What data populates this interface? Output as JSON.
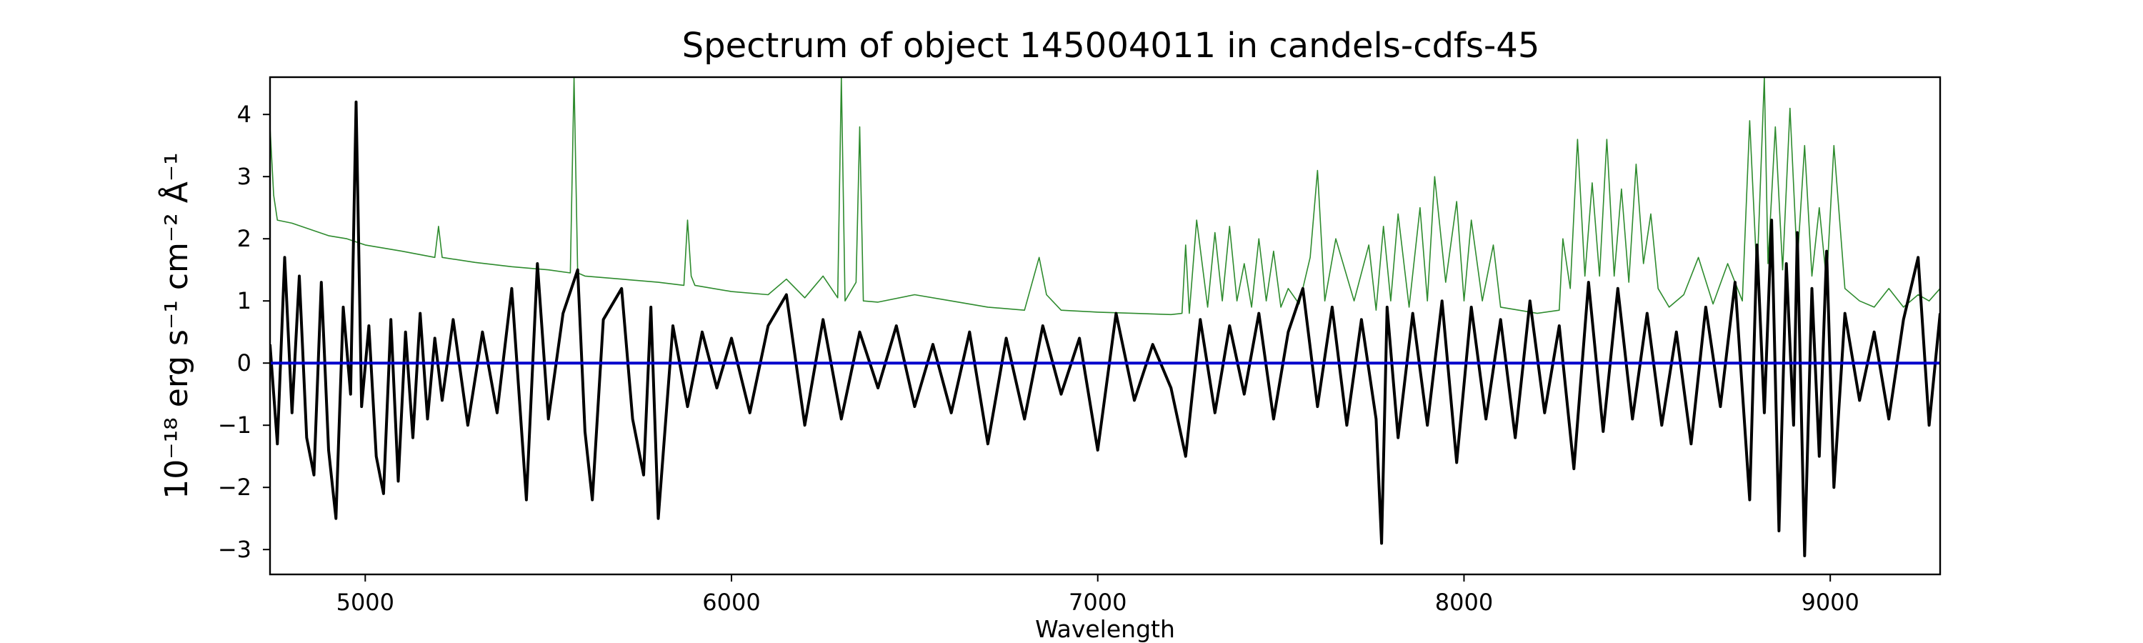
{
  "chart_data": {
    "type": "line",
    "title": "Spectrum of object 145004011 in candels-cdfs-45",
    "xlabel": "Wavelength",
    "ylabel": "10⁻¹⁸ erg s⁻¹ cm⁻² Å⁻¹",
    "xlim": [
      4740,
      9300
    ],
    "ylim": [
      -3.4,
      4.6
    ],
    "xticks": [
      5000,
      6000,
      7000,
      8000,
      9000
    ],
    "xtick_labels": [
      "5000",
      "6000",
      "7000",
      "8000",
      "9000"
    ],
    "yticks": [
      4,
      3,
      2,
      1,
      0,
      -1,
      -2,
      -3
    ],
    "ytick_labels": [
      "4",
      "3",
      "2",
      "1",
      "0",
      "−1",
      "−2",
      "−3"
    ],
    "grid": false,
    "colors": {
      "flux": "#000000",
      "error": "#2e8b2e",
      "zero": "#0000cc"
    },
    "series": [
      {
        "role": "flux",
        "x": [
          4740,
          4760,
          4780,
          4800,
          4820,
          4840,
          4860,
          4880,
          4900,
          4920,
          4940,
          4960,
          4975,
          4990,
          5010,
          5030,
          5050,
          5070,
          5090,
          5110,
          5130,
          5150,
          5170,
          5190,
          5210,
          5240,
          5280,
          5320,
          5360,
          5400,
          5440,
          5470,
          5500,
          5540,
          5580,
          5600,
          5620,
          5650,
          5700,
          5730,
          5760,
          5780,
          5800,
          5840,
          5880,
          5920,
          5960,
          6000,
          6050,
          6100,
          6150,
          6200,
          6250,
          6300,
          6350,
          6400,
          6450,
          6500,
          6550,
          6600,
          6650,
          6700,
          6750,
          6800,
          6850,
          6900,
          6950,
          7000,
          7050,
          7100,
          7150,
          7200,
          7240,
          7280,
          7320,
          7360,
          7400,
          7440,
          7480,
          7520,
          7560,
          7600,
          7640,
          7680,
          7720,
          7760,
          7775,
          7790,
          7820,
          7860,
          7900,
          7940,
          7980,
          8020,
          8060,
          8100,
          8140,
          8180,
          8220,
          8260,
          8300,
          8340,
          8380,
          8420,
          8460,
          8500,
          8540,
          8580,
          8620,
          8660,
          8700,
          8740,
          8780,
          8800,
          8820,
          8840,
          8860,
          8880,
          8900,
          8910,
          8930,
          8950,
          8970,
          8990,
          9010,
          9040,
          9080,
          9120,
          9160,
          9200,
          9240,
          9270,
          9300
        ],
        "y": [
          0.3,
          -1.3,
          1.7,
          -0.8,
          1.4,
          -1.2,
          -1.8,
          1.3,
          -1.4,
          -2.5,
          0.9,
          -0.5,
          4.2,
          -0.7,
          0.6,
          -1.5,
          -2.1,
          0.7,
          -1.9,
          0.5,
          -1.2,
          0.8,
          -0.9,
          0.4,
          -0.6,
          0.7,
          -1.0,
          0.5,
          -0.8,
          1.2,
          -2.2,
          1.6,
          -0.9,
          0.8,
          1.5,
          -1.1,
          -2.2,
          0.7,
          1.2,
          -0.9,
          -1.8,
          0.9,
          -2.5,
          0.6,
          -0.7,
          0.5,
          -0.4,
          0.4,
          -0.8,
          0.6,
          1.1,
          -1.0,
          0.7,
          -0.9,
          0.5,
          -0.4,
          0.6,
          -0.7,
          0.3,
          -0.8,
          0.5,
          -1.3,
          0.4,
          -0.9,
          0.6,
          -0.5,
          0.4,
          -1.4,
          0.8,
          -0.6,
          0.3,
          -0.4,
          -1.5,
          0.7,
          -0.8,
          0.6,
          -0.5,
          0.8,
          -0.9,
          0.5,
          1.2,
          -0.7,
          0.9,
          -1.0,
          0.7,
          -0.9,
          -2.9,
          0.9,
          -1.2,
          0.8,
          -1.0,
          1.0,
          -1.6,
          0.9,
          -0.9,
          0.7,
          -1.2,
          1.0,
          -0.8,
          0.6,
          -1.7,
          1.3,
          -1.1,
          1.2,
          -0.9,
          0.8,
          -1.0,
          0.5,
          -1.3,
          0.9,
          -0.7,
          1.3,
          -2.2,
          1.9,
          -0.8,
          2.3,
          -2.7,
          1.6,
          -1.0,
          2.1,
          -3.1,
          1.2,
          -1.5,
          1.8,
          -2.0,
          0.8,
          -0.6,
          0.5,
          -0.9,
          0.7,
          1.7,
          -1.0,
          0.8
        ]
      },
      {
        "role": "error",
        "x": [
          4740,
          4750,
          4760,
          4800,
          4850,
          4900,
          4950,
          5000,
          5100,
          5190,
          5200,
          5210,
          5300,
          5400,
          5500,
          5560,
          5570,
          5580,
          5600,
          5700,
          5800,
          5870,
          5880,
          5890,
          5900,
          6000,
          6100,
          6150,
          6200,
          6250,
          6290,
          6300,
          6310,
          6340,
          6350,
          6360,
          6400,
          6500,
          6600,
          6700,
          6800,
          6840,
          6860,
          6900,
          7000,
          7100,
          7200,
          7230,
          7240,
          7250,
          7270,
          7300,
          7320,
          7340,
          7360,
          7380,
          7400,
          7420,
          7440,
          7460,
          7480,
          7500,
          7520,
          7550,
          7580,
          7600,
          7620,
          7650,
          7700,
          7740,
          7760,
          7780,
          7800,
          7820,
          7850,
          7880,
          7900,
          7920,
          7950,
          7980,
          8000,
          8020,
          8050,
          8080,
          8100,
          8150,
          8200,
          8260,
          8270,
          8290,
          8310,
          8330,
          8350,
          8370,
          8390,
          8410,
          8430,
          8450,
          8470,
          8490,
          8510,
          8530,
          8560,
          8600,
          8640,
          8680,
          8720,
          8760,
          8780,
          8800,
          8820,
          8830,
          8850,
          8870,
          8890,
          8910,
          8930,
          8950,
          8970,
          8990,
          9010,
          9040,
          9080,
          9120,
          9160,
          9200,
          9240,
          9270,
          9300
        ],
        "y": [
          3.8,
          2.7,
          2.3,
          2.25,
          2.15,
          2.05,
          2.0,
          1.9,
          1.8,
          1.7,
          2.2,
          1.7,
          1.62,
          1.55,
          1.5,
          1.45,
          4.6,
          1.45,
          1.4,
          1.35,
          1.3,
          1.25,
          2.3,
          1.4,
          1.25,
          1.15,
          1.1,
          1.35,
          1.05,
          1.4,
          1.05,
          4.6,
          1.0,
          1.3,
          3.8,
          1.0,
          0.98,
          1.1,
          1.0,
          0.9,
          0.85,
          1.7,
          1.1,
          0.85,
          0.82,
          0.8,
          0.78,
          0.8,
          1.9,
          0.8,
          2.3,
          0.9,
          2.1,
          1.0,
          2.2,
          1.0,
          1.6,
          0.9,
          2.0,
          1.0,
          1.8,
          0.9,
          1.2,
          0.95,
          1.7,
          3.1,
          1.0,
          2.0,
          1.0,
          1.9,
          0.85,
          2.2,
          1.0,
          2.4,
          0.9,
          2.5,
          1.0,
          3.0,
          1.3,
          2.6,
          1.0,
          2.3,
          1.0,
          1.9,
          0.9,
          0.85,
          0.8,
          0.85,
          2.0,
          1.2,
          3.6,
          1.4,
          2.9,
          1.4,
          3.6,
          1.4,
          2.8,
          1.3,
          3.2,
          1.6,
          2.4,
          1.2,
          0.9,
          1.1,
          1.7,
          0.95,
          1.6,
          1.0,
          3.9,
          1.4,
          4.6,
          1.6,
          3.8,
          1.5,
          4.1,
          1.6,
          3.5,
          1.4,
          2.5,
          1.3,
          3.5,
          1.2,
          1.0,
          0.9,
          1.2,
          0.9,
          1.1,
          1.0,
          1.2
        ]
      },
      {
        "role": "zero",
        "x": [
          4740,
          9300
        ],
        "y": [
          0,
          0
        ]
      }
    ]
  }
}
